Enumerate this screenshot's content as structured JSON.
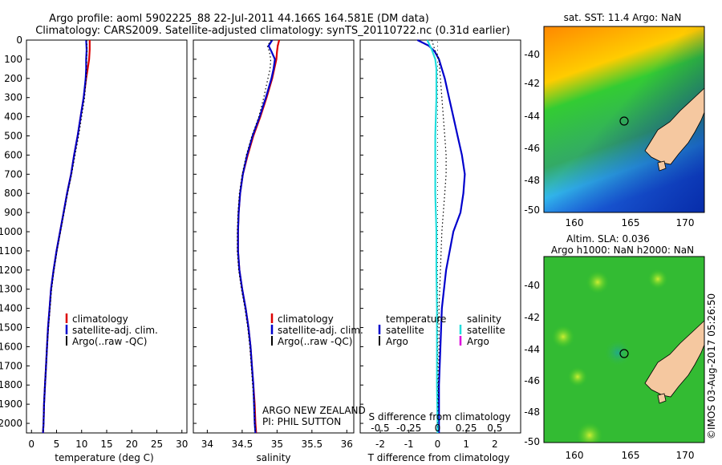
{
  "header": {
    "line1": "Argo profile: aoml 5902225_88 22-Jul-2011 44.166S 164.581E (DM data)",
    "line2": "Climatology: CARS2009. Satellite-adjusted climatology: synTS_20110722.nc (0.31d earlier)"
  },
  "colors": {
    "climatology": "#dd0000",
    "satellite": "#0000cc",
    "argo": "#000000",
    "s_satellite": "#22dddd",
    "s_argo": "#dd00dd",
    "land": "#f5c8a0"
  },
  "chart_data": [
    {
      "id": "temperature",
      "type": "line",
      "xlabel": "temperature (deg C)",
      "ylabel": "",
      "xlim": [
        -1,
        31
      ],
      "ylim": [
        2050,
        0
      ],
      "xticks": [
        0,
        5,
        10,
        15,
        20,
        25,
        30
      ],
      "yticks": [
        0,
        100,
        200,
        300,
        400,
        500,
        600,
        700,
        800,
        900,
        1000,
        1100,
        1200,
        1300,
        1400,
        1500,
        1600,
        1700,
        1800,
        1900,
        2000
      ],
      "legend": [
        "climatology",
        "satellite-adj. clim.",
        "Argo(..raw -QC)"
      ],
      "series": [
        {
          "name": "climatology",
          "depth": [
            0,
            50,
            100,
            150,
            200,
            300,
            400,
            500,
            600,
            700,
            800,
            900,
            1000,
            1100,
            1200,
            1300,
            1400,
            1500,
            1600,
            1700,
            1800,
            1900,
            2000,
            2050
          ],
          "values": [
            11.6,
            11.6,
            11.5,
            11.2,
            10.9,
            10.4,
            9.8,
            9.2,
            8.5,
            7.9,
            7.1,
            6.4,
            5.7,
            5.0,
            4.4,
            3.9,
            3.6,
            3.3,
            3.1,
            2.9,
            2.7,
            2.5,
            2.4,
            2.3
          ]
        },
        {
          "name": "satellite-adj. clim.",
          "depth": [
            0,
            50,
            100,
            150,
            200,
            300,
            400,
            500,
            600,
            700,
            800,
            900,
            1000,
            1100,
            1200,
            1300,
            1400,
            1500,
            1600,
            1700,
            1800,
            1900,
            2000,
            2050
          ],
          "values": [
            10.9,
            11.0,
            10.9,
            10.9,
            10.8,
            10.4,
            9.8,
            9.2,
            8.5,
            7.9,
            7.1,
            6.4,
            5.7,
            5.0,
            4.4,
            3.9,
            3.6,
            3.3,
            3.1,
            2.9,
            2.7,
            2.5,
            2.4,
            2.3
          ]
        },
        {
          "name": "Argo(..raw -QC)",
          "depth": [
            0,
            50,
            100,
            150,
            200,
            300,
            400,
            500,
            600,
            700,
            800,
            900,
            1000,
            1100,
            1200,
            1300,
            1400,
            1500,
            1600,
            1700,
            1800,
            1900,
            2000,
            2050
          ],
          "values": [
            11.0,
            11.1,
            11.0,
            11.0,
            10.9,
            10.6,
            10.0,
            9.4,
            8.7,
            8.0,
            7.2,
            6.5,
            5.8,
            5.1,
            4.5,
            4.0,
            3.7,
            3.4,
            3.1,
            2.9,
            2.7,
            2.5,
            2.4,
            2.3
          ]
        }
      ]
    },
    {
      "id": "salinity",
      "type": "line",
      "xlabel": "salinity",
      "ylabel": "",
      "xlim": [
        33.8,
        36.1
      ],
      "ylim": [
        2050,
        0
      ],
      "xticks": [
        34,
        34.5,
        35,
        35.5,
        36
      ],
      "legend": [
        "climatology",
        "satellite-adj. clim.",
        "Argo(..raw -QC)"
      ],
      "annotations": [
        "ARGO NEW ZEALAND",
        "PI: PHIL SUTTON"
      ],
      "series": [
        {
          "name": "climatology",
          "depth": [
            0,
            30,
            60,
            100,
            150,
            200,
            300,
            400,
            500,
            600,
            700,
            800,
            900,
            1000,
            1100,
            1200,
            1300,
            1400,
            1500,
            1600,
            1700,
            1800,
            1900,
            2000,
            2050
          ],
          "values": [
            35.03,
            35.01,
            35.0,
            34.99,
            34.96,
            34.93,
            34.85,
            34.76,
            34.66,
            34.58,
            34.51,
            34.47,
            34.45,
            34.44,
            34.44,
            34.46,
            34.5,
            34.55,
            34.59,
            34.62,
            34.64,
            34.66,
            34.68,
            34.69,
            34.7
          ]
        },
        {
          "name": "satellite-adj. clim.",
          "depth": [
            0,
            30,
            60,
            100,
            150,
            200,
            300,
            400,
            500,
            600,
            700,
            800,
            900,
            1000,
            1100,
            1200,
            1300,
            1400,
            1500,
            1600,
            1700,
            1800,
            1900,
            2000,
            2050
          ],
          "values": [
            34.93,
            34.88,
            34.92,
            34.97,
            34.95,
            34.92,
            34.84,
            34.75,
            34.65,
            34.57,
            34.51,
            34.47,
            34.45,
            34.44,
            34.44,
            34.46,
            34.5,
            34.55,
            34.59,
            34.62,
            34.64,
            34.66,
            34.67,
            34.68,
            34.69
          ]
        },
        {
          "name": "Argo(..raw -QC)",
          "depth": [
            0,
            30,
            60,
            100,
            150,
            200,
            300,
            400,
            500,
            600,
            700,
            800,
            900,
            1000,
            1100,
            1200,
            1300,
            1400,
            1500,
            1600,
            1700,
            1800,
            1900,
            2000,
            2050
          ],
          "values": [
            34.92,
            34.86,
            34.89,
            34.91,
            34.9,
            34.87,
            34.81,
            34.74,
            34.64,
            34.56,
            34.5,
            34.46,
            34.44,
            34.43,
            34.43,
            34.45,
            34.49,
            34.54,
            34.58,
            34.61,
            34.63,
            34.65,
            34.67,
            34.68,
            34.69
          ]
        }
      ]
    },
    {
      "id": "difference",
      "type": "line",
      "xlabel": "T difference from climatology",
      "xlabel_top": "S difference from climatology",
      "xlim": [
        -2.7,
        2.9
      ],
      "ylim": [
        2050,
        0
      ],
      "xticks": [
        -2,
        -1,
        0,
        1,
        2
      ],
      "s_xticks": [
        "-0.5",
        "-0.25",
        "0",
        "0.25",
        "0.5"
      ],
      "legend_temperature": {
        "title": "temperature",
        "items": [
          "satellite",
          "Argo"
        ]
      },
      "legend_salinity": {
        "title": "salinity",
        "items": [
          "satellite",
          "Argo"
        ]
      },
      "series": [
        {
          "name": "T satellite",
          "depth": [
            0,
            30,
            60,
            100,
            150,
            200,
            300,
            400,
            500,
            600,
            700,
            800,
            900,
            1000,
            1200,
            1400,
            1600,
            1800,
            2000,
            2050
          ],
          "values": [
            -0.7,
            -0.3,
            -0.1,
            0.05,
            0.15,
            0.25,
            0.4,
            0.55,
            0.7,
            0.85,
            0.95,
            0.9,
            0.8,
            0.55,
            0.3,
            0.15,
            0.1,
            0.05,
            0.05,
            0.05
          ]
        },
        {
          "name": "T Argo",
          "depth": [
            0,
            50,
            100,
            200,
            300,
            400,
            500,
            600,
            700,
            800,
            900,
            1000,
            1200,
            1400,
            1600,
            1800,
            2000
          ],
          "values": [
            -0.2,
            -0.1,
            0.05,
            0.1,
            0.15,
            0.2,
            0.25,
            0.3,
            0.3,
            0.25,
            0.2,
            0.15,
            0.1,
            0.05,
            0.05,
            0.03,
            0.02
          ]
        },
        {
          "name": "S satellite",
          "depth": [
            0,
            50,
            100,
            150,
            200,
            300,
            400,
            500,
            600,
            700,
            800,
            900,
            1000,
            1200,
            1400,
            1600,
            1800,
            2000,
            2050
          ],
          "values": [
            -0.09,
            -0.05,
            -0.02,
            -0.01,
            -0.01,
            -0.01,
            -0.015,
            -0.02,
            -0.02,
            -0.02,
            -0.02,
            -0.015,
            -0.01,
            -0.01,
            -0.005,
            -0.005,
            -0.005,
            0,
            0
          ]
        }
      ]
    }
  ],
  "maps": {
    "sst": {
      "title": "sat. SST: 11.4 Argo: NaN",
      "yticks": [
        "-40",
        "-42",
        "-44",
        "-46",
        "-48",
        "-50"
      ],
      "xticks": [
        "160",
        "165",
        "170"
      ]
    },
    "sla": {
      "title1": "Altim. SLA: 0.036",
      "title2": "Argo h1000: NaN h2000: NaN",
      "yticks": [
        "-40",
        "-42",
        "-44",
        "-46",
        "-48",
        "-50"
      ],
      "xticks": [
        "160",
        "165",
        "170"
      ]
    }
  },
  "credit": "©IMOS 03-Aug-2017 05:26:50"
}
